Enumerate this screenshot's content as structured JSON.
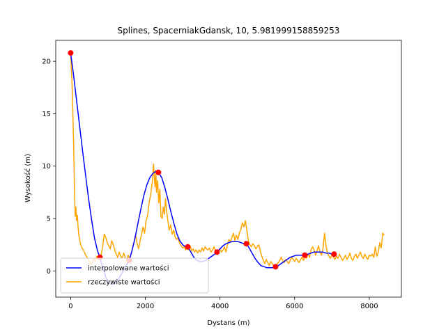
{
  "chart_data": {
    "type": "line",
    "title": "Splines, SpacerniakGdansk, 10, 5.981999158859253",
    "xlabel": "Dystans (m)",
    "ylabel": "Wysokość (m)",
    "xlim": [
      -400,
      8860
    ],
    "ylim": [
      -2.5,
      22.0
    ],
    "xticks": [
      0,
      2000,
      4000,
      6000,
      8000
    ],
    "xtick_labels": [
      "0",
      "2000",
      "4000",
      "6000",
      "8000"
    ],
    "yticks": [
      0,
      5,
      10,
      15,
      20
    ],
    "ytick_labels": [
      "0",
      "5",
      "10",
      "15",
      "20"
    ],
    "grid": false,
    "legend_position": "lower-left",
    "series": [
      {
        "name": "interpolowane wartości",
        "color": "#0000ff",
        "x": [
          0,
          80,
          160,
          240,
          320,
          400,
          480,
          560,
          640,
          720,
          784,
          860,
          940,
          1020,
          1100,
          1180,
          1260,
          1340,
          1420,
          1500,
          1568,
          1640,
          1720,
          1800,
          1880,
          1960,
          2040,
          2120,
          2200,
          2280,
          2352,
          2440,
          2520,
          2600,
          2680,
          2760,
          2840,
          2920,
          3000,
          3080,
          3136,
          3220,
          3300,
          3380,
          3460,
          3540,
          3620,
          3700,
          3780,
          3860,
          3920,
          4000,
          4080,
          4160,
          4240,
          4320,
          4400,
          4480,
          4560,
          4640,
          4704,
          4780,
          4860,
          4940,
          5020,
          5100,
          5180,
          5260,
          5340,
          5420,
          5488,
          5560,
          5640,
          5720,
          5800,
          5880,
          5960,
          6040,
          6120,
          6200,
          6272,
          6360,
          6440,
          6520,
          6600,
          6680,
          6760,
          6840,
          6920,
          7000,
          7056
        ],
        "y": [
          20.8,
          18.6,
          16.2,
          13.8,
          11.4,
          9.1,
          6.9,
          4.9,
          3.1,
          1.9,
          1.3,
          0.3,
          -0.6,
          -1.1,
          -1.3,
          -1.2,
          -0.9,
          -0.4,
          0.1,
          0.6,
          1.0,
          1.9,
          3.1,
          4.5,
          5.9,
          7.2,
          8.2,
          8.9,
          9.3,
          9.5,
          9.4,
          8.9,
          8.0,
          6.9,
          5.7,
          4.6,
          3.6,
          2.9,
          2.5,
          2.3,
          2.3,
          1.8,
          1.3,
          1.0,
          0.9,
          0.9,
          1.0,
          1.2,
          1.4,
          1.6,
          1.8,
          2.1,
          2.4,
          2.6,
          2.7,
          2.8,
          2.8,
          2.8,
          2.7,
          2.6,
          2.6,
          2.2,
          1.7,
          1.2,
          0.8,
          0.5,
          0.4,
          0.3,
          0.3,
          0.3,
          0.4,
          0.5,
          0.7,
          0.9,
          1.1,
          1.3,
          1.4,
          1.5,
          1.5,
          1.5,
          1.5,
          1.6,
          1.7,
          1.8,
          1.8,
          1.8,
          1.8,
          1.7,
          1.7,
          1.6,
          1.6
        ]
      },
      {
        "name": "rzeczywiste wartości",
        "color": "#ffa500",
        "x": [
          0,
          40,
          80,
          100,
          120,
          140,
          160,
          180,
          200,
          220,
          240,
          260,
          300,
          340,
          380,
          420,
          460,
          500,
          540,
          580,
          620,
          660,
          700,
          740,
          780,
          820,
          860,
          900,
          940,
          980,
          1020,
          1060,
          1100,
          1140,
          1180,
          1220,
          1260,
          1300,
          1340,
          1380,
          1420,
          1460,
          1500,
          1540,
          1580,
          1620,
          1660,
          1700,
          1740,
          1780,
          1820,
          1860,
          1900,
          1940,
          1980,
          2020,
          2060,
          2100,
          2140,
          2180,
          2200,
          2220,
          2240,
          2260,
          2280,
          2300,
          2330,
          2360,
          2390,
          2420,
          2450,
          2480,
          2510,
          2540,
          2570,
          2600,
          2640,
          2680,
          2720,
          2760,
          2800,
          2840,
          2880,
          2920,
          2960,
          3000,
          3040,
          3080,
          3120,
          3160,
          3200,
          3240,
          3280,
          3320,
          3360,
          3400,
          3440,
          3480,
          3520,
          3560,
          3600,
          3640,
          3680,
          3720,
          3760,
          3800,
          3840,
          3880,
          3920,
          3960,
          4000,
          4040,
          4080,
          4120,
          4160,
          4200,
          4240,
          4280,
          4320,
          4360,
          4400,
          4440,
          4480,
          4520,
          4560,
          4600,
          4640,
          4680,
          4720,
          4760,
          4800,
          4840,
          4880,
          4920,
          4960,
          5000,
          5040,
          5080,
          5120,
          5160,
          5200,
          5240,
          5280,
          5320,
          5360,
          5400,
          5440,
          5480,
          5520,
          5560,
          5600,
          5640,
          5680,
          5720,
          5760,
          5800,
          5840,
          5880,
          5920,
          5960,
          6000,
          6040,
          6080,
          6120,
          6160,
          6200,
          6240,
          6280,
          6320,
          6360,
          6400,
          6440,
          6480,
          6520,
          6560,
          6600,
          6640,
          6680,
          6720,
          6760,
          6800,
          6840,
          6880,
          6920,
          6960,
          7000,
          7040,
          7080,
          7120,
          7160,
          7200,
          7240,
          7280,
          7320,
          7360,
          7400,
          7440,
          7480,
          7520,
          7560,
          7600,
          7640,
          7680,
          7720,
          7760,
          7800,
          7840,
          7880,
          7920,
          7960,
          8000,
          8040,
          8080,
          8120,
          8160,
          8200,
          8240,
          8280,
          8320,
          8360,
          8400
        ],
        "y": [
          20.8,
          17.5,
          12.0,
          8.0,
          5.2,
          6.1,
          4.8,
          5.3,
          4.1,
          3.4,
          3.0,
          2.6,
          2.2,
          2.0,
          1.7,
          1.4,
          1.2,
          0.9,
          0.6,
          0.8,
          1.2,
          0.9,
          1.4,
          1.1,
          1.3,
          1.6,
          2.4,
          3.5,
          3.2,
          2.7,
          2.4,
          2.1,
          2.9,
          2.5,
          2.0,
          1.6,
          1.3,
          1.8,
          1.4,
          1.2,
          1.7,
          1.3,
          1.0,
          1.5,
          1.2,
          1.6,
          2.2,
          2.8,
          3.4,
          2.6,
          2.1,
          2.9,
          3.5,
          4.2,
          3.6,
          4.8,
          5.3,
          6.5,
          7.2,
          8.3,
          9.0,
          10.2,
          9.0,
          8.0,
          9.6,
          7.5,
          8.6,
          6.5,
          7.8,
          5.2,
          5.0,
          6.1,
          5.4,
          6.9,
          5.7,
          4.9,
          3.9,
          4.4,
          3.5,
          3.9,
          3.2,
          3.0,
          3.2,
          2.6,
          2.4,
          2.2,
          2.3,
          2.0,
          2.2,
          2.0,
          2.4,
          1.9,
          2.1,
          1.8,
          2.0,
          1.7,
          2.0,
          1.8,
          2.2,
          1.9,
          2.3,
          2.1,
          2.0,
          2.2,
          1.8,
          2.0,
          2.3,
          1.9,
          1.7,
          1.9,
          2.1,
          1.8,
          2.0,
          2.3,
          1.8,
          2.5,
          3.0,
          2.8,
          3.2,
          3.6,
          2.9,
          3.4,
          3.0,
          3.6,
          4.0,
          4.6,
          4.2,
          4.8,
          3.9,
          2.9,
          2.5,
          2.3,
          2.6,
          2.4,
          2.1,
          2.3,
          2.5,
          1.9,
          1.4,
          1.0,
          0.7,
          1.1,
          0.8,
          0.5,
          0.9,
          0.7,
          0.5,
          0.4,
          0.6,
          0.8,
          1.0,
          1.3,
          1.0,
          0.8,
          1.1,
          0.9,
          0.7,
          1.0,
          1.3,
          1.1,
          0.9,
          1.2,
          1.0,
          0.8,
          1.1,
          1.3,
          1.0,
          1.4,
          1.2,
          1.6,
          1.3,
          2.0,
          2.3,
          2.0,
          1.5,
          1.9,
          2.4,
          1.8,
          1.5,
          2.1,
          3.6,
          2.4,
          1.7,
          1.4,
          1.2,
          1.6,
          1.3,
          1.1,
          1.4,
          1.2,
          1.6,
          1.3,
          1.0,
          1.2,
          1.5,
          1.1,
          1.3,
          1.7,
          1.2,
          1.0,
          1.4,
          1.6,
          1.2,
          1.5,
          1.8,
          1.4,
          1.2,
          1.6,
          1.3,
          1.1,
          1.5,
          1.4,
          1.6,
          1.3,
          2.3,
          1.4,
          1.8,
          2.7,
          2.2,
          3.6,
          3.4
        ]
      }
    ],
    "points": {
      "color": "#ff0000",
      "x": [
        0,
        784,
        1568,
        2352,
        3136,
        3920,
        4704,
        5488,
        6272,
        7056
      ],
      "y": [
        20.8,
        1.3,
        1.0,
        9.4,
        2.3,
        1.8,
        2.6,
        0.4,
        1.5,
        1.6
      ]
    }
  }
}
